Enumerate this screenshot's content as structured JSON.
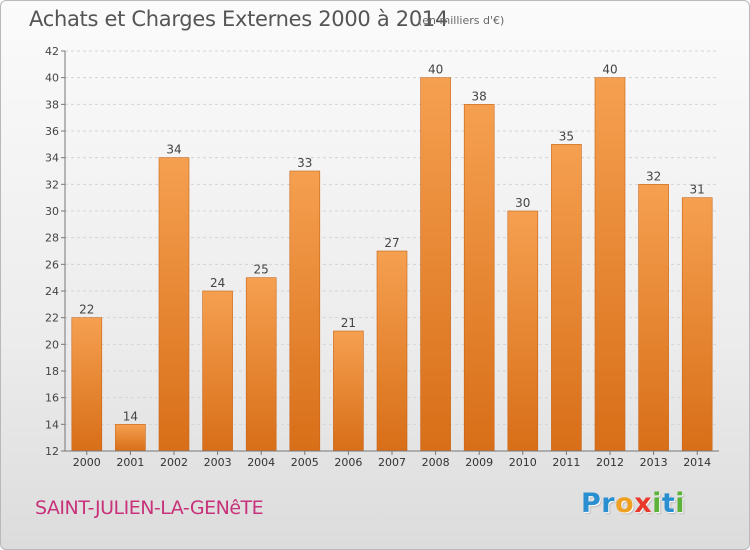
{
  "title": "Achats et Charges Externes 2000 à 2014",
  "subtitle": "(en milliers d'€)",
  "commune": "SAINT-JULIEN-LA-GENêTE",
  "logo": {
    "letters": [
      "P",
      "r",
      "o",
      "x",
      "i",
      "t",
      "i"
    ],
    "colors": [
      "#2a8fd0",
      "#2a8fd0",
      "#f0a020",
      "#e8392a",
      "#5db33a",
      "#2a8fd0",
      "#5db33a"
    ]
  },
  "colors": {
    "bar_light": "#f5a050",
    "bar_dark": "#d86e18",
    "title_text": "#555555",
    "commune_text": "#c8327a"
  },
  "chart_data": {
    "type": "bar",
    "title": "Achats et Charges Externes 2000 à 2014",
    "subtitle": "(en milliers d'€)",
    "categories": [
      "2000",
      "2001",
      "2002",
      "2003",
      "2004",
      "2005",
      "2006",
      "2007",
      "2008",
      "2009",
      "2010",
      "2011",
      "2012",
      "2013",
      "2014"
    ],
    "values": [
      22,
      14,
      34,
      24,
      25,
      33,
      21,
      27,
      40,
      38,
      30,
      35,
      40,
      32,
      31
    ],
    "ylim": [
      12,
      42
    ],
    "yticks": [
      12,
      14,
      16,
      18,
      20,
      22,
      24,
      26,
      28,
      30,
      32,
      34,
      36,
      38,
      40,
      42
    ],
    "grid": true,
    "data_labels": true
  }
}
